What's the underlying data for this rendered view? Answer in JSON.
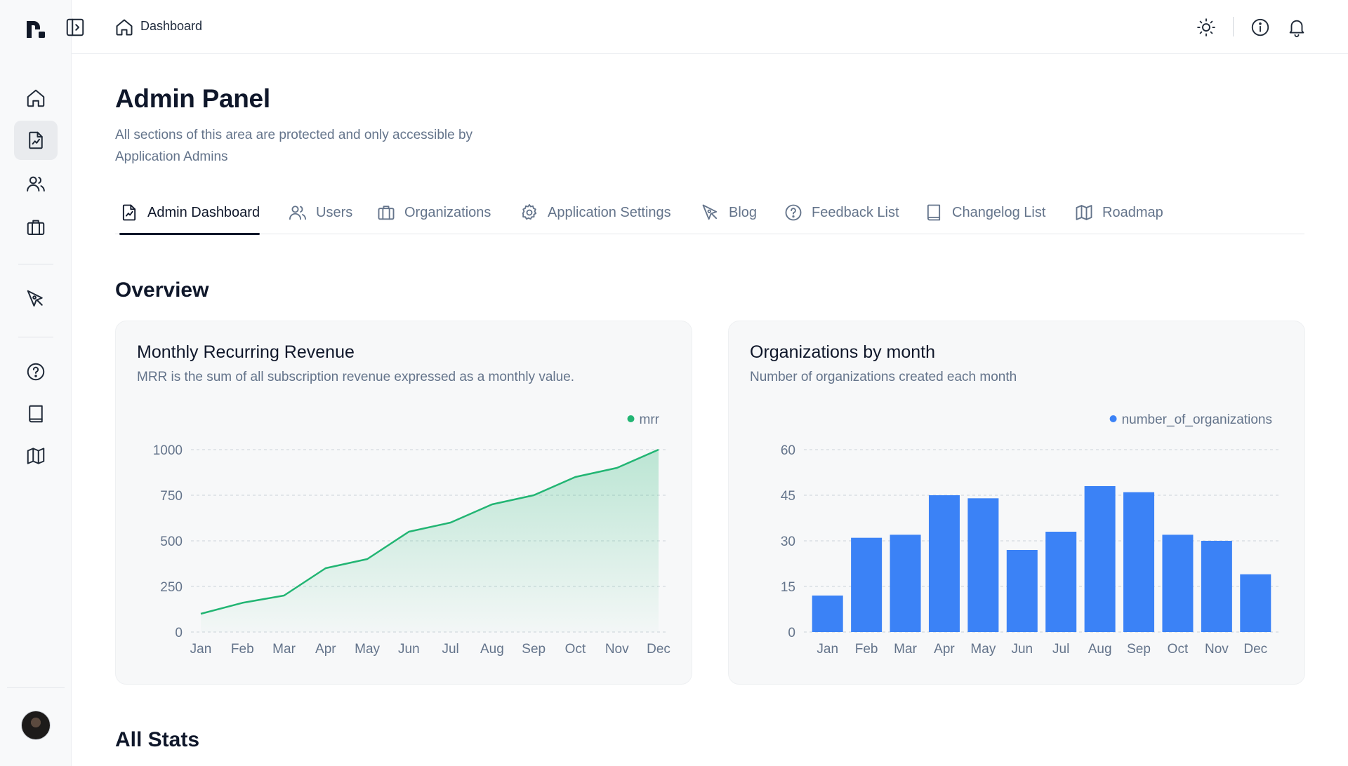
{
  "topbar": {
    "breadcrumb": "Dashboard"
  },
  "sidebar": {
    "items": [
      {
        "icon": "home-icon"
      },
      {
        "icon": "report-icon",
        "active": true
      },
      {
        "icon": "users-icon"
      },
      {
        "icon": "briefcase-icon"
      },
      {
        "icon": "pen-tool-icon"
      },
      {
        "icon": "help-circle-icon"
      },
      {
        "icon": "book-icon"
      },
      {
        "icon": "map-icon"
      }
    ]
  },
  "header": {
    "title": "Admin Panel",
    "description": "All sections of this area are protected and only accessible by Application Admins"
  },
  "tabs": [
    {
      "label": "Admin Dashboard",
      "icon": "report-icon",
      "active": true
    },
    {
      "label": "Users",
      "icon": "users-icon"
    },
    {
      "label": "Organizations",
      "icon": "briefcase-icon"
    },
    {
      "label": "Application Settings",
      "icon": "gear-icon"
    },
    {
      "label": "Blog",
      "icon": "pen-tool-icon"
    },
    {
      "label": "Feedback List",
      "icon": "help-circle-icon"
    },
    {
      "label": "Changelog List",
      "icon": "book-icon"
    },
    {
      "label": "Roadmap",
      "icon": "map-icon"
    }
  ],
  "overview": {
    "title": "Overview"
  },
  "all_stats": {
    "title": "All Stats"
  },
  "colors": {
    "line": "#22b573",
    "bar": "#3b82f6"
  },
  "chart_data": [
    {
      "type": "area",
      "title": "Monthly Recurring Revenue",
      "subtitle": "MRR is the sum of all subscription revenue expressed as a monthly value.",
      "categories": [
        "Jan",
        "Feb",
        "Mar",
        "Apr",
        "May",
        "Jun",
        "Jul",
        "Aug",
        "Sep",
        "Oct",
        "Nov",
        "Dec"
      ],
      "series": [
        {
          "name": "mrr",
          "values": [
            100,
            160,
            200,
            350,
            400,
            550,
            600,
            700,
            750,
            850,
            900,
            1000
          ]
        }
      ],
      "yticks": [
        0,
        250,
        500,
        750,
        1000
      ],
      "ylim": [
        0,
        1000
      ],
      "grid": true,
      "legend": "top-right"
    },
    {
      "type": "bar",
      "title": "Organizations by month",
      "subtitle": "Number of organizations created each month",
      "categories": [
        "Jan",
        "Feb",
        "Mar",
        "Apr",
        "May",
        "Jun",
        "Jul",
        "Aug",
        "Sep",
        "Oct",
        "Nov",
        "Dec"
      ],
      "series": [
        {
          "name": "number_of_organizations",
          "values": [
            12,
            31,
            32,
            45,
            44,
            27,
            33,
            48,
            46,
            32,
            30,
            19
          ]
        }
      ],
      "yticks": [
        0,
        15,
        30,
        45,
        60
      ],
      "ylim": [
        0,
        60
      ],
      "grid": true,
      "legend": "top-right"
    }
  ]
}
